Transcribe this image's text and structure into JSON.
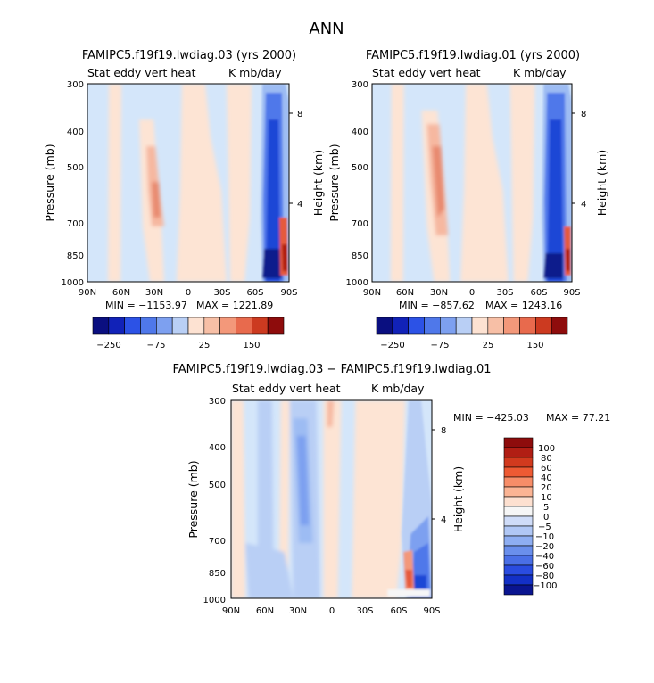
{
  "figure": {
    "title": "ANN"
  },
  "chart_data": [
    {
      "type": "heatmap",
      "title": "FAMIPC5.f19f19.lwdiag.03 (yrs 2000)",
      "subtitle_left": "Stat eddy vert heat",
      "subtitle_right": "K mb/day",
      "xlabel": "",
      "ylabel": "Pressure (mb)",
      "y2label": "Height (km)",
      "x_ticks": [
        "90N",
        "60N",
        "30N",
        "0",
        "30S",
        "60S",
        "90S"
      ],
      "y_ticks": [
        "300",
        "400",
        "500",
        "700",
        "850",
        "1000"
      ],
      "y2_ticks": [
        "8",
        "4"
      ],
      "min_label": "MIN = −1153.97",
      "max_label": "MAX = 1221.89",
      "colorbar_ticks": [
        "−250",
        "−75",
        "25",
        "150"
      ],
      "colorbar_orientation": "horizontal"
    },
    {
      "type": "heatmap",
      "title": "FAMIPC5.f19f19.lwdiag.01 (yrs 2000)",
      "subtitle_left": "Stat eddy vert heat",
      "subtitle_right": "K mb/day",
      "xlabel": "",
      "ylabel": "Pressure (mb)",
      "y2label": "Height (km)",
      "x_ticks": [
        "90N",
        "60N",
        "30N",
        "0",
        "30S",
        "60S",
        "90S"
      ],
      "y_ticks": [
        "300",
        "400",
        "500",
        "700",
        "850",
        "1000"
      ],
      "y2_ticks": [
        "8",
        "4"
      ],
      "min_label": "MIN = −857.62",
      "max_label": "MAX = 1243.16",
      "colorbar_ticks": [
        "−250",
        "−75",
        "25",
        "150"
      ],
      "colorbar_orientation": "horizontal"
    },
    {
      "type": "heatmap",
      "title": "FAMIPC5.f19f19.lwdiag.03 − FAMIPC5.f19f19.lwdiag.01",
      "subtitle_left": "Stat eddy vert heat",
      "subtitle_right": "K mb/day",
      "xlabel": "",
      "ylabel": "Pressure (mb)",
      "y2label": "Height (km)",
      "x_ticks": [
        "90N",
        "60N",
        "30N",
        "0",
        "30S",
        "60S",
        "90S"
      ],
      "y_ticks": [
        "300",
        "400",
        "500",
        "700",
        "850",
        "1000"
      ],
      "y2_ticks": [
        "8",
        "4"
      ],
      "min_label": "MIN = −425.03",
      "max_label": "MAX =  77.21",
      "colorbar_ticks": [
        "100",
        "80",
        "60",
        "40",
        "20",
        "10",
        "5",
        "0",
        "−5",
        "−10",
        "−20",
        "−40",
        "−60",
        "−80",
        "−100"
      ],
      "colorbar_orientation": "vertical"
    }
  ],
  "colors": {
    "panel_bg": "#d4e6fa",
    "warm_light": "#fde4d4",
    "warm_mid": "#f6b8a0",
    "warm_strong": "#e55a3c",
    "cool_mid": "#9dbcf3",
    "cool_strong": "#1e46d6",
    "cool_dark": "#0a1a8c",
    "colorbar_12": [
      "#0a0f80",
      "#1122b8",
      "#2c52e6",
      "#4f78ea",
      "#7da0f0",
      "#b9cff5",
      "#fde2d2",
      "#f7bfa6",
      "#f3987a",
      "#e86a4d",
      "#cc3a20",
      "#8e0c0c"
    ],
    "colorbar_16": [
      "#8e0c0c",
      "#b11e14",
      "#d23a1e",
      "#ee5a33",
      "#f78d68",
      "#fbb494",
      "#fde0d0",
      "#f6f6f6",
      "#cfdcf8",
      "#b0c7f5",
      "#8eaef2",
      "#6a8fec",
      "#4a6fe6",
      "#2a4ce0",
      "#1330c6",
      "#0a1590"
    ]
  }
}
